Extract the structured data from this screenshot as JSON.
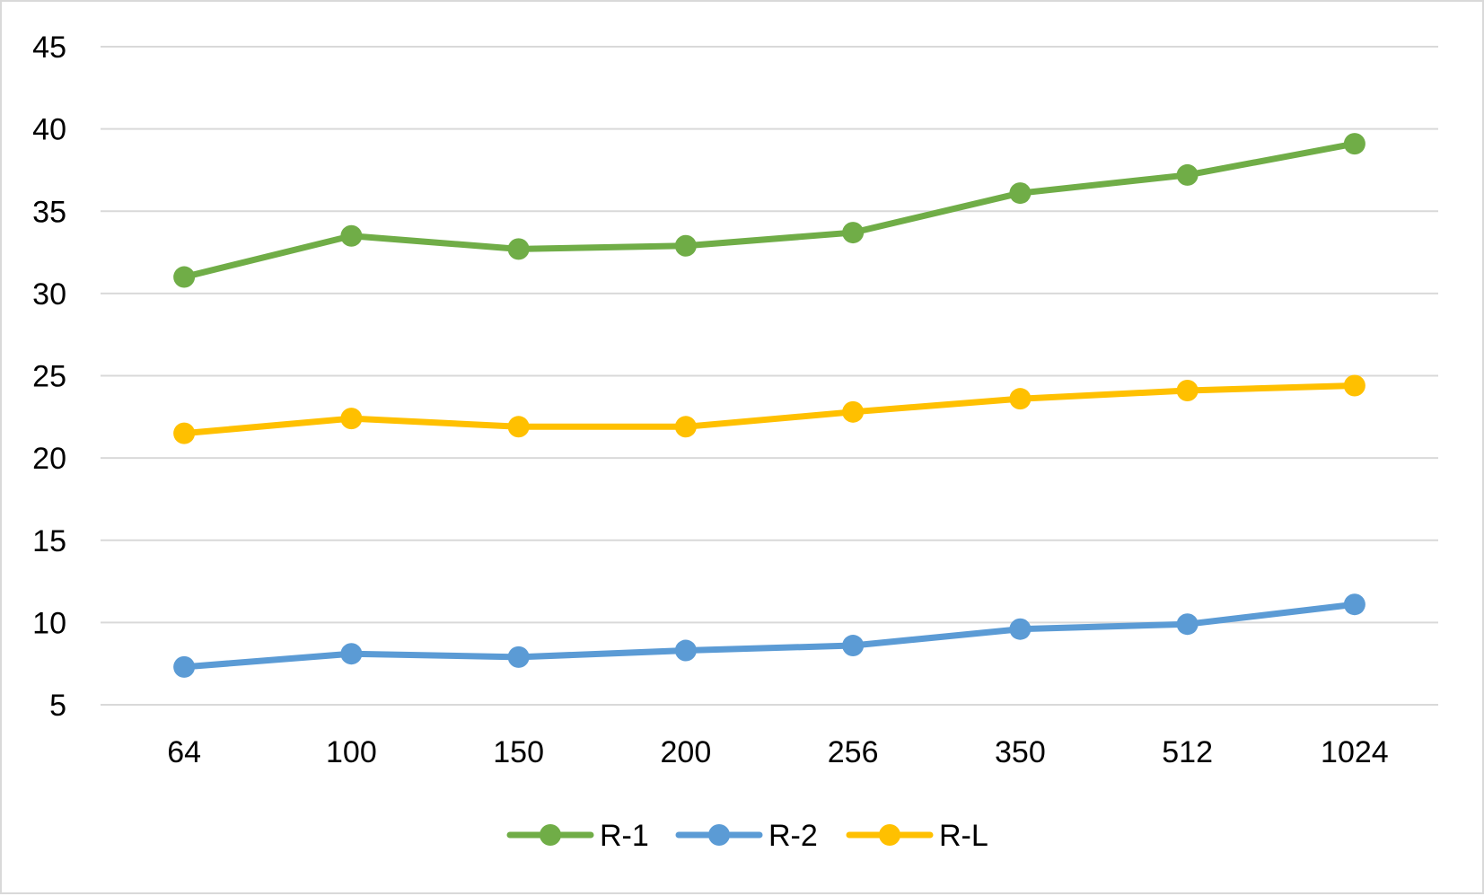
{
  "chart_data": {
    "type": "line",
    "title": "",
    "xlabel": "",
    "ylabel": "",
    "categories": [
      "64",
      "100",
      "150",
      "200",
      "256",
      "350",
      "512",
      "1024"
    ],
    "ylim": [
      5,
      45
    ],
    "yticks": [
      5,
      10,
      15,
      20,
      25,
      30,
      35,
      40,
      45
    ],
    "ytick_labels": [
      "5",
      "10",
      "15",
      "20",
      "25",
      "30",
      "35",
      "40",
      "45"
    ],
    "grid": true,
    "legend_position": "bottom",
    "series": [
      {
        "name": "R-1",
        "color": "#70ad47",
        "values": [
          31.0,
          33.5,
          32.7,
          32.9,
          33.7,
          36.1,
          37.2,
          39.1
        ]
      },
      {
        "name": "R-2",
        "color": "#5b9bd5",
        "values": [
          7.3,
          8.1,
          7.9,
          8.3,
          8.6,
          9.6,
          9.9,
          11.1
        ]
      },
      {
        "name": "R-L",
        "color": "#ffc000",
        "values": [
          21.5,
          22.4,
          21.9,
          21.9,
          22.8,
          23.6,
          24.1,
          24.4
        ]
      }
    ]
  }
}
